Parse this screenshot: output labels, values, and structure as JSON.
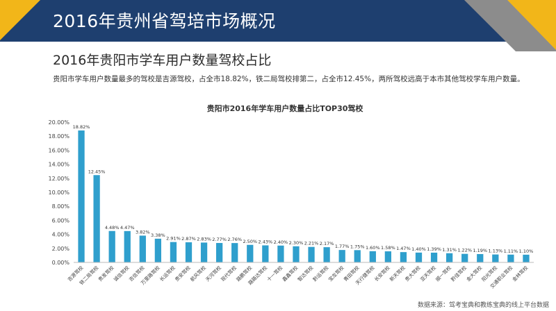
{
  "header": {
    "title": "2016年贵州省驾培市场概况"
  },
  "section": {
    "subtitle": "2016年贵阳市学车用户数量驾校占比",
    "description": "贵阳市学车用户数量最多的驾校是吉源驾校，占全市18.82%，铁二局驾校排第二，占全市12.45%，两所驾校远高于本市其他驾校学车用户数量。"
  },
  "source_note": "数据来源：驾考宝典和教练宝典的线上平台数据",
  "colors": {
    "header": "#1e3f6f",
    "accent_yellow": "#f2b619",
    "accent_gray": "#8c8c8c",
    "bar": "#2f9fcd"
  },
  "chart_data": {
    "type": "bar",
    "title": "贵阳市2016年学车用户数量占比TOP30驾校",
    "categories": [
      "吉源驾校",
      "铁二局驾校",
      "贵发驾校",
      "诚信驾校",
      "吉信驾校",
      "万里路驾校",
      "长运驾校",
      "贵安驾校",
      "航风驾校",
      "天河驾校",
      "现代驾校",
      "路鹏驾校",
      "路路达驾校",
      "十一驾校",
      "鑫鑫驾校",
      "智达驾校",
      "黔运驾校",
      "宝龙驾校",
      "青田驾校",
      "天行健驾校",
      "长安驾校",
      "新天驾校",
      "贵大驾校",
      "亚天驾校",
      "顺一驾校",
      "黔佳驾校",
      "金大驾校",
      "阳光驾校",
      "交通职业驾校",
      "金林驾校"
    ],
    "values": [
      18.82,
      12.45,
      4.48,
      4.47,
      3.82,
      3.38,
      2.91,
      2.87,
      2.83,
      2.77,
      2.76,
      2.5,
      2.43,
      2.4,
      2.3,
      2.21,
      2.17,
      1.77,
      1.75,
      1.6,
      1.58,
      1.47,
      1.4,
      1.39,
      1.31,
      1.22,
      1.19,
      1.13,
      1.11,
      1.1
    ],
    "value_labels": [
      "18.82%",
      "12.45%",
      "4.48%",
      "4.47%",
      "3.82%",
      "3.38%",
      "2.91%",
      "2.87%",
      "2.83%",
      "2.77%",
      "2.76%",
      "2.50%",
      "2.43%",
      "2.40%",
      "2.30%",
      "2.21%",
      "2.17%",
      "1.77%",
      "1.75%",
      "1.60%",
      "1.58%",
      "1.47%",
      "1.40%",
      "1.39%",
      "1.31%",
      "1.22%",
      "1.19%",
      "1.13%",
      "1.11%",
      "1.10%"
    ],
    "y_ticks": [
      0,
      2,
      4,
      6,
      8,
      10,
      12,
      14,
      16,
      18,
      20
    ],
    "y_tick_labels": [
      "0.00%",
      "2.00%",
      "4.00%",
      "6.00%",
      "8.00%",
      "10.00%",
      "12.00%",
      "14.00%",
      "16.00%",
      "18.00%",
      "20.00%"
    ],
    "ylim": [
      0,
      20
    ],
    "grid": false,
    "legend": "none"
  }
}
